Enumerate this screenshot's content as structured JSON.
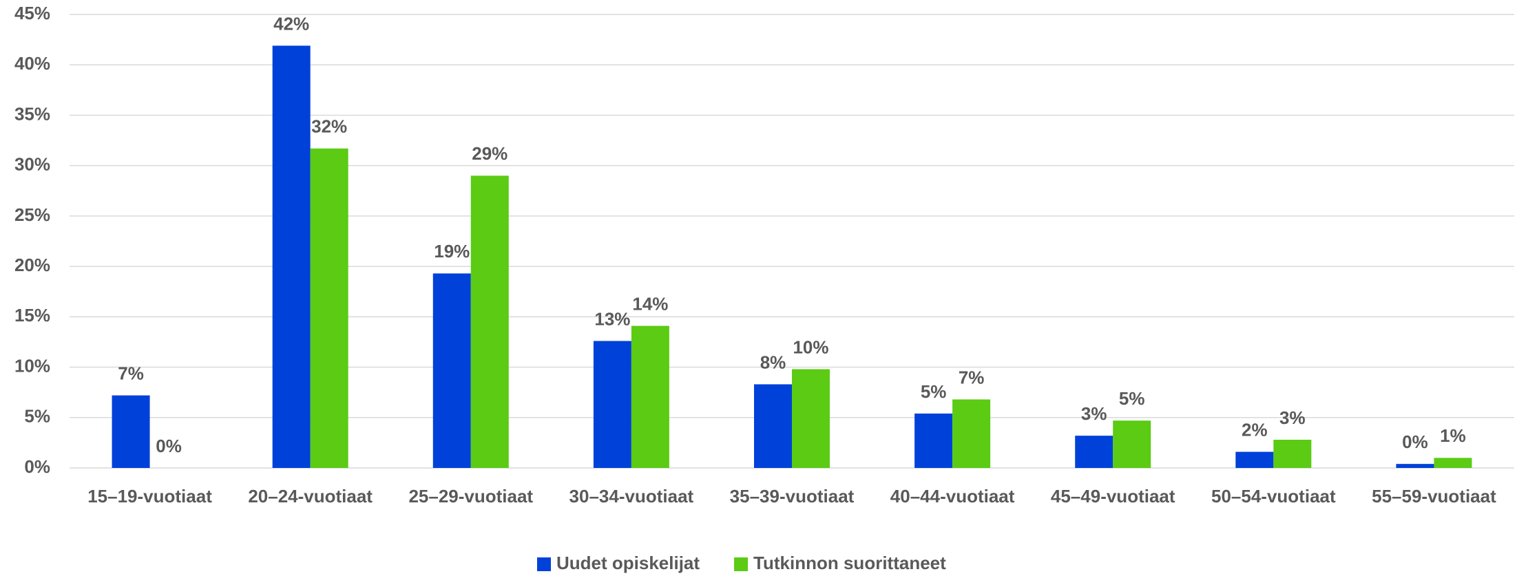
{
  "chart_data": {
    "type": "bar",
    "categories": [
      "15–19-vuotiaat",
      "20–24-vuotiaat",
      "25–29-vuotiaat",
      "30–34-vuotiaat",
      "35–39-vuotiaat",
      "40–44-vuotiaat",
      "45–49-vuotiaat",
      "50–54-vuotiaat",
      "55–59-vuotiaat"
    ],
    "series": [
      {
        "name": "Uudet opiskelijat",
        "color": "#0041d9",
        "values": [
          7.2,
          41.9,
          19.3,
          12.6,
          8.3,
          5.4,
          3.2,
          1.6,
          0.4
        ],
        "value_labels": [
          "7%",
          "42%",
          "19%",
          "13%",
          "8%",
          "5%",
          "3%",
          "2%",
          "0%"
        ]
      },
      {
        "name": "Tutkinnon suorittaneet",
        "color": "#5bcb14",
        "values": [
          0,
          31.7,
          29.0,
          14.1,
          9.8,
          6.8,
          4.7,
          2.8,
          1.0
        ],
        "value_labels": [
          "0%",
          "32%",
          "29%",
          "14%",
          "10%",
          "7%",
          "5%",
          "3%",
          "1%"
        ]
      }
    ],
    "ylim": [
      0,
      45
    ],
    "yticks": [
      {
        "value": 0,
        "label": "0%"
      },
      {
        "value": 5,
        "label": "5%"
      },
      {
        "value": 10,
        "label": "10%"
      },
      {
        "value": 15,
        "label": "15%"
      },
      {
        "value": 20,
        "label": "20%"
      },
      {
        "value": 25,
        "label": "25%"
      },
      {
        "value": 30,
        "label": "30%"
      },
      {
        "value": 35,
        "label": "35%"
      },
      {
        "value": 40,
        "label": "40%"
      },
      {
        "value": 45,
        "label": "45%"
      }
    ],
    "grid": true,
    "legend": "bottom"
  }
}
